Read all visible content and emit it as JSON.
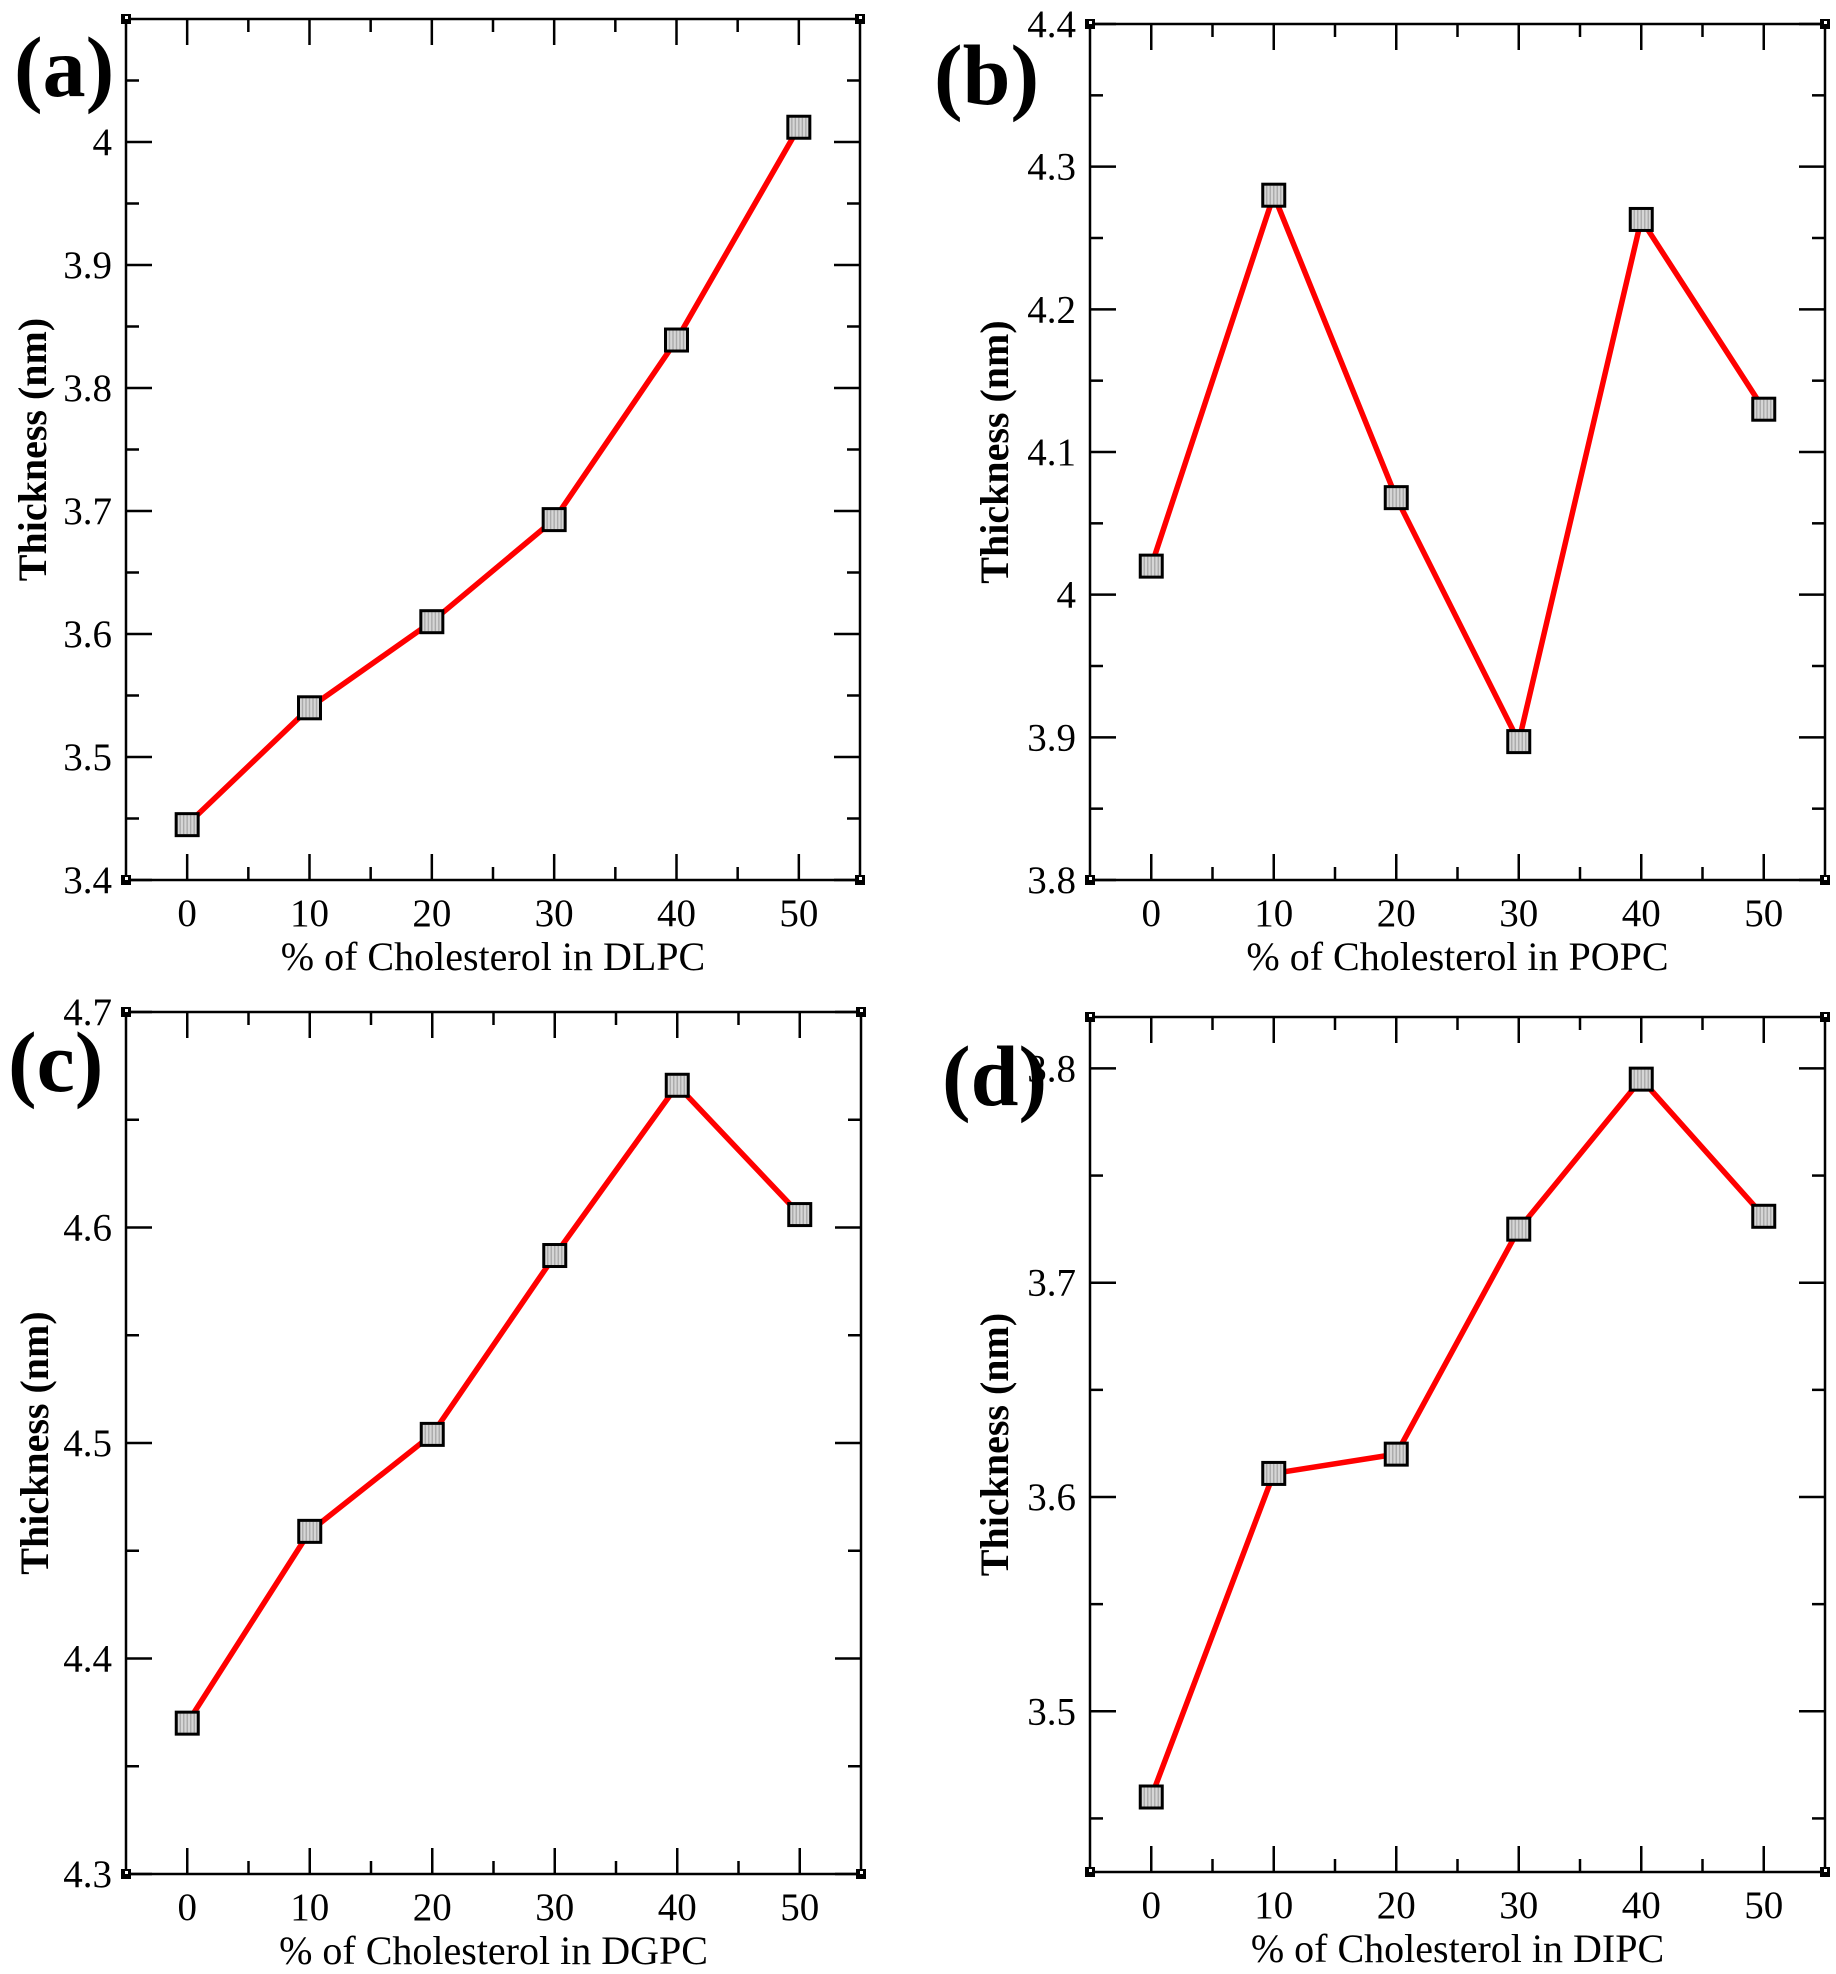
{
  "figure": {
    "background": "#ffffff",
    "line_color": "#ff0000",
    "marker_shape": "square",
    "marker_fill": "#d6d6d6",
    "marker_hatch": "#aaaaaa",
    "marker_border": "#000000",
    "axis_color": "#000000"
  },
  "chart_data": [
    {
      "type": "line",
      "panel_label": "(a)",
      "xlabel": "% of Cholesterol in DLPC",
      "ylabel": "Thickness (nm)",
      "x": [
        0,
        10,
        20,
        30,
        40,
        50
      ],
      "y": [
        3.445,
        3.54,
        3.61,
        3.693,
        3.839,
        4.012
      ],
      "xlim": [
        -5,
        55
      ],
      "ylim": [
        3.4,
        4.1
      ],
      "xticks": [
        0,
        10,
        20,
        30,
        40,
        50
      ],
      "xtick_labels": [
        "0",
        "10",
        "20",
        "30",
        "40",
        "50"
      ],
      "xticks_minor": [
        5,
        15,
        25,
        35,
        45
      ],
      "yticks": [
        3.4,
        3.5,
        3.6,
        3.7,
        3.8,
        3.9,
        4.0
      ],
      "ytick_labels": [
        "3.4",
        "3.5",
        "3.6",
        "3.7",
        "3.8",
        "3.9",
        "4"
      ],
      "yticks_minor": [
        3.45,
        3.55,
        3.65,
        3.75,
        3.85,
        3.95,
        4.05
      ],
      "grid": false,
      "legend": "none"
    },
    {
      "type": "line",
      "panel_label": "(b)",
      "xlabel": "% of Cholesterol in POPC",
      "ylabel": "Thickness (nm)",
      "x": [
        0,
        10,
        20,
        30,
        40,
        50
      ],
      "y": [
        4.02,
        4.28,
        4.068,
        3.897,
        4.263,
        4.13
      ],
      "xlim": [
        -5,
        55
      ],
      "ylim": [
        3.8,
        4.4
      ],
      "xticks": [
        0,
        10,
        20,
        30,
        40,
        50
      ],
      "xtick_labels": [
        "0",
        "10",
        "20",
        "30",
        "40",
        "50"
      ],
      "xticks_minor": [
        5,
        15,
        25,
        35,
        45
      ],
      "yticks": [
        3.8,
        3.9,
        4.0,
        4.1,
        4.2,
        4.3,
        4.4
      ],
      "ytick_labels": [
        "3.8",
        "3.9",
        "4",
        "4.1",
        "4.2",
        "4.3",
        "4.4"
      ],
      "yticks_minor": [
        3.85,
        3.95,
        4.05,
        4.15,
        4.25,
        4.35
      ],
      "grid": false,
      "legend": "none"
    },
    {
      "type": "line",
      "panel_label": "(c)",
      "xlabel": "% of Cholesterol in DGPC",
      "ylabel": "Thickness (nm)",
      "x": [
        0,
        10,
        20,
        30,
        40,
        50
      ],
      "y": [
        4.37,
        4.459,
        4.504,
        4.587,
        4.666,
        4.606
      ],
      "xlim": [
        -5,
        55
      ],
      "ylim": [
        4.3,
        4.7
      ],
      "xticks": [
        0,
        10,
        20,
        30,
        40,
        50
      ],
      "xtick_labels": [
        "0",
        "10",
        "20",
        "30",
        "40",
        "50"
      ],
      "xticks_minor": [
        5,
        15,
        25,
        35,
        45
      ],
      "yticks": [
        4.3,
        4.4,
        4.5,
        4.6,
        4.7
      ],
      "ytick_labels": [
        "4.3",
        "4.4",
        "4.5",
        "4.6",
        "4.7"
      ],
      "yticks_minor": [
        4.35,
        4.45,
        4.55,
        4.65
      ],
      "grid": false,
      "legend": "none"
    },
    {
      "type": "line",
      "panel_label": "(d)",
      "xlabel": "% of Cholesterol in DIPC",
      "ylabel": "Thickness (nm)",
      "x": [
        0,
        10,
        20,
        30,
        40,
        50
      ],
      "y": [
        3.46,
        3.611,
        3.62,
        3.725,
        3.795,
        3.731
      ],
      "xlim": [
        -5,
        55
      ],
      "ylim": [
        3.425,
        3.824
      ],
      "xticks": [
        0,
        10,
        20,
        30,
        40,
        50
      ],
      "xtick_labels": [
        "0",
        "10",
        "20",
        "30",
        "40",
        "50"
      ],
      "xticks_minor": [
        5,
        15,
        25,
        35,
        45
      ],
      "yticks": [
        3.5,
        3.6,
        3.7,
        3.8
      ],
      "ytick_labels": [
        "3.5",
        "3.6",
        "3.7",
        "3.8"
      ],
      "yticks_minor": [
        3.45,
        3.55,
        3.65,
        3.75
      ],
      "grid": false,
      "legend": "none"
    }
  ]
}
